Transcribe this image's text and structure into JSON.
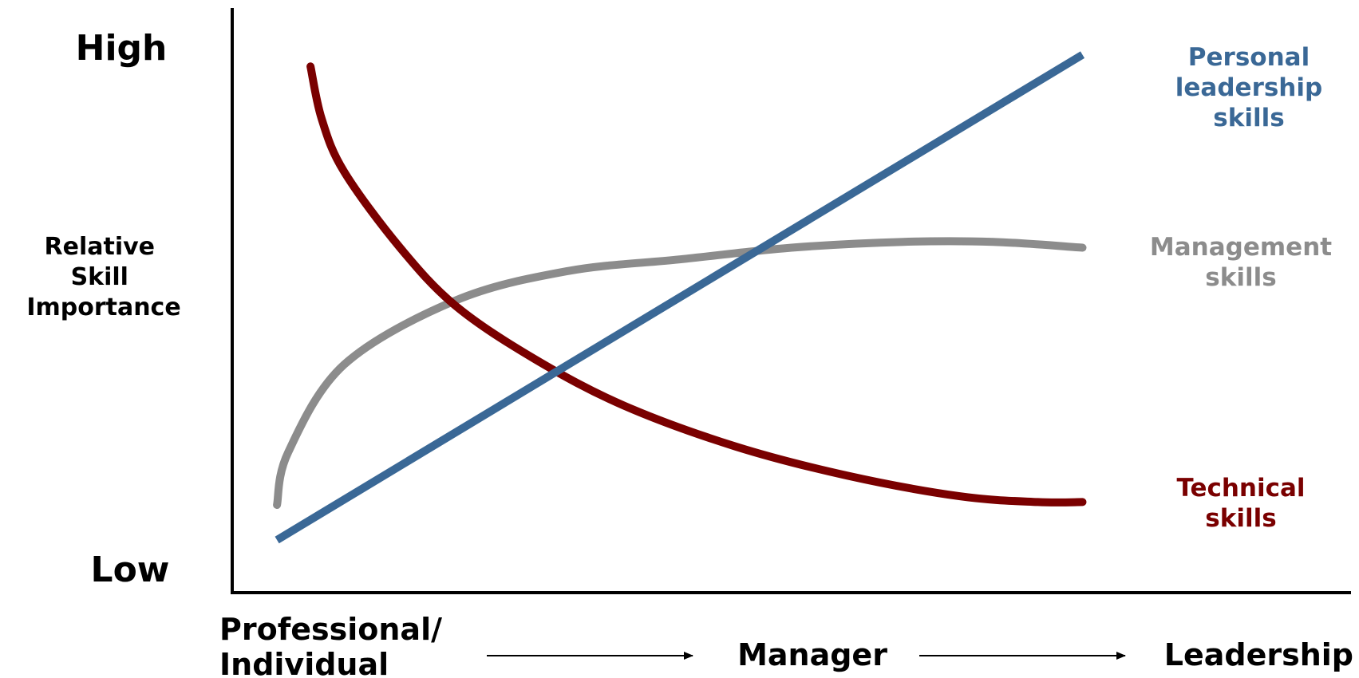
{
  "chart_data": {
    "type": "line",
    "title": "",
    "ylabel": "Relative Skill Importance",
    "ylabel_lines": [
      "Relative",
      "Skill",
      "Importance"
    ],
    "y_ticks": [
      "High",
      "Low"
    ],
    "x_labels": {
      "start_lines": [
        "Professional/",
        "Individual"
      ],
      "middle": "Manager",
      "end": "Leadership"
    },
    "xlim": [
      0,
      1
    ],
    "ylim": [
      0,
      1
    ],
    "grid": false,
    "legend": "inline-right",
    "series": [
      {
        "name": "Personal leadership skills",
        "label_lines": [
          "Personal",
          "leadership",
          "skills"
        ],
        "color": "#3a6896",
        "x": [
          0.04,
          0.76
        ],
        "y": [
          0.09,
          0.92
        ]
      },
      {
        "name": "Management skills",
        "label_lines": [
          "Management",
          "skills"
        ],
        "color": "#8c8c8c",
        "x": [
          0.04,
          0.05,
          0.1,
          0.2,
          0.3,
          0.4,
          0.5,
          0.6,
          0.68,
          0.76
        ],
        "y": [
          0.15,
          0.24,
          0.39,
          0.5,
          0.55,
          0.57,
          0.59,
          0.6,
          0.6,
          0.59
        ]
      },
      {
        "name": "Technical skills",
        "label_lines": [
          "Technical",
          "skills"
        ],
        "color": "#7a0000",
        "x": [
          0.07,
          0.08,
          0.1,
          0.15,
          0.2,
          0.27,
          0.35,
          0.45,
          0.55,
          0.65,
          0.72,
          0.76
        ],
        "y": [
          0.9,
          0.81,
          0.72,
          0.59,
          0.49,
          0.4,
          0.32,
          0.25,
          0.2,
          0.165,
          0.155,
          0.155
        ]
      }
    ]
  }
}
